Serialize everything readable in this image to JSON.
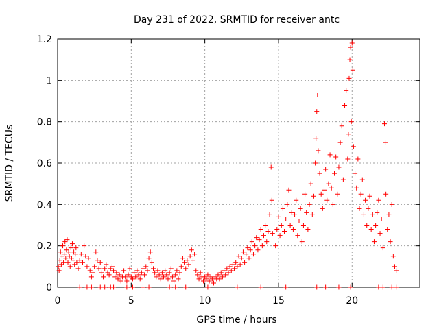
{
  "chart_data": {
    "type": "scatter",
    "title": "Day 231 of 2022, SRMTID for receiver antc",
    "xlabel": "GPS time / hours",
    "ylabel": "SRMTID / TECUs",
    "xlim": [
      0,
      24.6
    ],
    "ylim": [
      0,
      1.2
    ],
    "xticks": [
      0,
      5,
      10,
      15,
      20
    ],
    "xtick_labels": [
      "0",
      "5",
      "10",
      "15",
      "20"
    ],
    "yticks": [
      0,
      0.2,
      0.4,
      0.6,
      0.8,
      1.0,
      1.2
    ],
    "ytick_labels": [
      "0",
      "0.2",
      "0.4",
      "0.6",
      "0.8",
      "1",
      "1.2"
    ],
    "grid": true,
    "marker": "+",
    "series": [
      {
        "name": "SRMTID",
        "color": "#ff0000",
        "points": [
          [
            0.05,
            0.1
          ],
          [
            0.1,
            0.08
          ],
          [
            0.15,
            0.13
          ],
          [
            0.2,
            0.17
          ],
          [
            0.25,
            0.11
          ],
          [
            0.3,
            0.15
          ],
          [
            0.35,
            0.2
          ],
          [
            0.4,
            0.12
          ],
          [
            0.45,
            0.16
          ],
          [
            0.5,
            0.22
          ],
          [
            0.55,
            0.14
          ],
          [
            0.6,
            0.18
          ],
          [
            0.65,
            0.23
          ],
          [
            0.7,
            0.12
          ],
          [
            0.75,
            0.17
          ],
          [
            0.8,
            0.15
          ],
          [
            0.85,
            0.1
          ],
          [
            0.9,
            0.19
          ],
          [
            0.95,
            0.14
          ],
          [
            1.0,
            0.21
          ],
          [
            1.05,
            0.13
          ],
          [
            1.1,
            0.17
          ],
          [
            1.15,
            0.11
          ],
          [
            1.2,
            0.16
          ],
          [
            1.25,
            0.19
          ],
          [
            1.3,
            0.12
          ],
          [
            1.4,
            0.09
          ],
          [
            1.5,
            0.13
          ],
          [
            1.6,
            0.16
          ],
          [
            1.7,
            0.12
          ],
          [
            1.8,
            0.2
          ],
          [
            1.9,
            0.15
          ],
          [
            2.0,
            0.1
          ],
          [
            2.1,
            0.14
          ],
          [
            2.2,
            0.08
          ],
          [
            2.3,
            0.05
          ],
          [
            2.4,
            0.07
          ],
          [
            2.5,
            0.1
          ],
          [
            2.6,
            0.17
          ],
          [
            2.7,
            0.13
          ],
          [
            2.8,
            0.09
          ],
          [
            2.9,
            0.12
          ],
          [
            3.0,
            0.07
          ],
          [
            3.1,
            0.05
          ],
          [
            3.2,
            0.09
          ],
          [
            3.3,
            0.11
          ],
          [
            3.4,
            0.07
          ],
          [
            3.5,
            0.06
          ],
          [
            3.6,
            0.09
          ],
          [
            3.7,
            0.1
          ],
          [
            3.8,
            0.08
          ],
          [
            3.9,
            0.05
          ],
          [
            4.0,
            0.07
          ],
          [
            4.1,
            0.04
          ],
          [
            4.2,
            0.06
          ],
          [
            4.3,
            0.03
          ],
          [
            4.4,
            0.05
          ],
          [
            4.5,
            0.08
          ],
          [
            4.6,
            0.05
          ],
          [
            4.7,
            0.03
          ],
          [
            4.8,
            0.06
          ],
          [
            4.9,
            0.09
          ],
          [
            5.0,
            0.05
          ],
          [
            5.1,
            0.04
          ],
          [
            5.2,
            0.07
          ],
          [
            5.3,
            0.05
          ],
          [
            5.4,
            0.08
          ],
          [
            5.5,
            0.06
          ],
          [
            5.6,
            0.04
          ],
          [
            5.7,
            0.07
          ],
          [
            5.8,
            0.09
          ],
          [
            5.9,
            0.06
          ],
          [
            6.0,
            0.1
          ],
          [
            6.1,
            0.08
          ],
          [
            6.2,
            0.14
          ],
          [
            6.3,
            0.17
          ],
          [
            6.4,
            0.12
          ],
          [
            6.5,
            0.09
          ],
          [
            6.6,
            0.07
          ],
          [
            6.7,
            0.05
          ],
          [
            6.8,
            0.08
          ],
          [
            6.9,
            0.06
          ],
          [
            7.0,
            0.04
          ],
          [
            7.1,
            0.07
          ],
          [
            7.2,
            0.05
          ],
          [
            7.3,
            0.08
          ],
          [
            7.4,
            0.06
          ],
          [
            7.5,
            0.04
          ],
          [
            7.6,
            0.07
          ],
          [
            7.7,
            0.09
          ],
          [
            7.8,
            0.05
          ],
          [
            7.9,
            0.03
          ],
          [
            8.0,
            0.06
          ],
          [
            8.1,
            0.08
          ],
          [
            8.2,
            0.04
          ],
          [
            8.3,
            0.07
          ],
          [
            8.4,
            0.1
          ],
          [
            8.5,
            0.14
          ],
          [
            8.6,
            0.12
          ],
          [
            8.7,
            0.09
          ],
          [
            8.8,
            0.13
          ],
          [
            8.9,
            0.11
          ],
          [
            9.0,
            0.15
          ],
          [
            9.1,
            0.18
          ],
          [
            9.2,
            0.13
          ],
          [
            9.3,
            0.16
          ],
          [
            9.4,
            0.08
          ],
          [
            9.5,
            0.06
          ],
          [
            9.6,
            0.04
          ],
          [
            9.7,
            0.07
          ],
          [
            9.8,
            0.05
          ],
          [
            9.9,
            0.03
          ],
          [
            10.0,
            0.05
          ],
          [
            10.1,
            0.04
          ],
          [
            10.2,
            0.06
          ],
          [
            10.3,
            0.03
          ],
          [
            10.4,
            0.05
          ],
          [
            10.5,
            0.04
          ],
          [
            10.6,
            0.02
          ],
          [
            10.7,
            0.05
          ],
          [
            10.8,
            0.04
          ],
          [
            10.9,
            0.06
          ],
          [
            11.0,
            0.04
          ],
          [
            11.1,
            0.07
          ],
          [
            11.2,
            0.05
          ],
          [
            11.3,
            0.08
          ],
          [
            11.4,
            0.06
          ],
          [
            11.5,
            0.09
          ],
          [
            11.6,
            0.07
          ],
          [
            11.7,
            0.1
          ],
          [
            11.8,
            0.08
          ],
          [
            11.9,
            0.11
          ],
          [
            12.0,
            0.09
          ],
          [
            12.1,
            0.12
          ],
          [
            12.2,
            0.1
          ],
          [
            12.3,
            0.15
          ],
          [
            12.4,
            0.11
          ],
          [
            12.5,
            0.14
          ],
          [
            12.6,
            0.17
          ],
          [
            12.7,
            0.12
          ],
          [
            12.8,
            0.16
          ],
          [
            12.9,
            0.19
          ],
          [
            13.0,
            0.14
          ],
          [
            13.1,
            0.18
          ],
          [
            13.2,
            0.22
          ],
          [
            13.3,
            0.16
          ],
          [
            13.4,
            0.2
          ],
          [
            13.5,
            0.24
          ],
          [
            13.6,
            0.18
          ],
          [
            13.7,
            0.23
          ],
          [
            13.8,
            0.28
          ],
          [
            13.9,
            0.2
          ],
          [
            14.0,
            0.25
          ],
          [
            14.1,
            0.3
          ],
          [
            14.2,
            0.22
          ],
          [
            14.3,
            0.27
          ],
          [
            14.4,
            0.35
          ],
          [
            14.5,
            0.58
          ],
          [
            14.55,
            0.42
          ],
          [
            14.6,
            0.26
          ],
          [
            14.7,
            0.31
          ],
          [
            14.8,
            0.2
          ],
          [
            14.9,
            0.28
          ],
          [
            15.0,
            0.34
          ],
          [
            15.1,
            0.25
          ],
          [
            15.2,
            0.3
          ],
          [
            15.3,
            0.38
          ],
          [
            15.4,
            0.27
          ],
          [
            15.5,
            0.33
          ],
          [
            15.6,
            0.4
          ],
          [
            15.7,
            0.47
          ],
          [
            15.8,
            0.3
          ],
          [
            15.9,
            0.36
          ],
          [
            16.0,
            0.28
          ],
          [
            16.1,
            0.35
          ],
          [
            16.2,
            0.42
          ],
          [
            16.3,
            0.25
          ],
          [
            16.4,
            0.32
          ],
          [
            16.5,
            0.38
          ],
          [
            16.6,
            0.22
          ],
          [
            16.7,
            0.3
          ],
          [
            16.8,
            0.45
          ],
          [
            16.9,
            0.36
          ],
          [
            17.0,
            0.28
          ],
          [
            17.1,
            0.4
          ],
          [
            17.2,
            0.5
          ],
          [
            17.3,
            0.35
          ],
          [
            17.4,
            0.44
          ],
          [
            17.5,
            0.6
          ],
          [
            17.55,
            0.72
          ],
          [
            17.6,
            0.85
          ],
          [
            17.65,
            0.93
          ],
          [
            17.7,
            0.66
          ],
          [
            17.8,
            0.55
          ],
          [
            17.9,
            0.45
          ],
          [
            18.0,
            0.38
          ],
          [
            18.1,
            0.47
          ],
          [
            18.2,
            0.57
          ],
          [
            18.3,
            0.42
          ],
          [
            18.4,
            0.5
          ],
          [
            18.5,
            0.64
          ],
          [
            18.6,
            0.48
          ],
          [
            18.7,
            0.4
          ],
          [
            18.8,
            0.55
          ],
          [
            18.9,
            0.63
          ],
          [
            19.0,
            0.45
          ],
          [
            19.1,
            0.58
          ],
          [
            19.2,
            0.7
          ],
          [
            19.3,
            0.78
          ],
          [
            19.4,
            0.52
          ],
          [
            19.5,
            0.88
          ],
          [
            19.6,
            0.95
          ],
          [
            19.7,
            0.62
          ],
          [
            19.75,
            0.74
          ],
          [
            19.8,
            1.01
          ],
          [
            19.85,
            1.1
          ],
          [
            19.9,
            1.16
          ],
          [
            19.95,
            0.8
          ],
          [
            20.0,
            1.18
          ],
          [
            20.05,
            1.05
          ],
          [
            20.1,
            0.68
          ],
          [
            20.2,
            0.55
          ],
          [
            20.3,
            0.48
          ],
          [
            20.4,
            0.62
          ],
          [
            20.5,
            0.38
          ],
          [
            20.6,
            0.45
          ],
          [
            20.7,
            0.52
          ],
          [
            20.8,
            0.35
          ],
          [
            20.9,
            0.42
          ],
          [
            21.0,
            0.3
          ],
          [
            21.1,
            0.38
          ],
          [
            21.2,
            0.44
          ],
          [
            21.3,
            0.28
          ],
          [
            21.4,
            0.35
          ],
          [
            21.5,
            0.22
          ],
          [
            21.6,
            0.3
          ],
          [
            21.7,
            0.36
          ],
          [
            21.8,
            0.42
          ],
          [
            21.9,
            0.26
          ],
          [
            22.0,
            0.33
          ],
          [
            22.1,
            0.19
          ],
          [
            22.2,
            0.79
          ],
          [
            22.25,
            0.7
          ],
          [
            22.3,
            0.45
          ],
          [
            22.4,
            0.28
          ],
          [
            22.5,
            0.35
          ],
          [
            22.6,
            0.22
          ],
          [
            22.7,
            0.4
          ],
          [
            22.8,
            0.15
          ],
          [
            22.9,
            0.1
          ],
          [
            23.0,
            0.08
          ]
        ]
      }
    ],
    "zero_points_x": [
      1.5,
      2.0,
      2.3,
      2.9,
      3.2,
      3.6,
      3.8,
      4.7,
      5.1,
      5.8,
      6.2,
      7.6,
      8.0,
      8.7,
      10.2,
      12.2,
      13.8,
      15.5,
      17.6,
      18.2,
      19.1,
      19.9,
      21.8,
      22.1,
      22.7,
      23.0
    ]
  }
}
